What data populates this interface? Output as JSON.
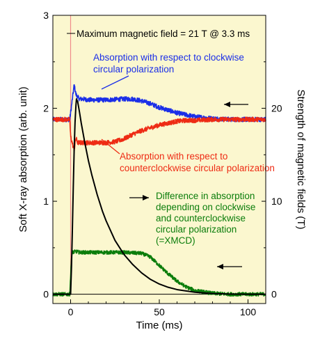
{
  "chart_data": {
    "type": "line",
    "xlabel": "Time (ms)",
    "ylabel": "Soft X-ray absorption (arb. unit)",
    "y2label": "Strength of magnetic fields (T)",
    "xlim": [
      -10,
      110
    ],
    "ylim": [
      -0.1,
      3.0
    ],
    "y2lim": [
      -1.0,
      30.0
    ],
    "xticks": [
      0,
      50,
      100
    ],
    "yticks": [
      0,
      1,
      2,
      3
    ],
    "y2ticks": [
      0,
      10,
      20
    ],
    "grid": false,
    "background": "#fbf7cf",
    "series": [
      {
        "id": "clockwise",
        "axis": "left",
        "color": "#1a2ee8",
        "noise": 0.025,
        "x": [
          -10,
          -0.5,
          0,
          1,
          2,
          3,
          4,
          5,
          7,
          10,
          20,
          30,
          35,
          40,
          45,
          50,
          55,
          60,
          65,
          70,
          80,
          90,
          100,
          110
        ],
        "y": [
          1.88,
          1.88,
          1.95,
          2.1,
          2.25,
          2.15,
          2.12,
          2.1,
          2.1,
          2.09,
          2.09,
          2.1,
          2.1,
          2.08,
          2.05,
          2.01,
          1.98,
          1.95,
          1.93,
          1.91,
          1.89,
          1.88,
          1.88,
          1.88
        ]
      },
      {
        "id": "counterclockwise",
        "axis": "left",
        "color": "#ee2b14",
        "noise": 0.025,
        "x": [
          -10,
          -0.5,
          0,
          1,
          2,
          3,
          4,
          5,
          7,
          10,
          20,
          25,
          30,
          35,
          40,
          45,
          50,
          55,
          60,
          65,
          70,
          80,
          90,
          100,
          110
        ],
        "y": [
          1.88,
          1.88,
          1.7,
          1.62,
          1.55,
          1.68,
          1.63,
          1.63,
          1.63,
          1.63,
          1.63,
          1.64,
          1.67,
          1.72,
          1.76,
          1.79,
          1.82,
          1.84,
          1.86,
          1.87,
          1.87,
          1.88,
          1.88,
          1.88,
          1.88
        ]
      },
      {
        "id": "xmcd",
        "axis": "left",
        "color": "#0b7d0b",
        "noise": 0.02,
        "x": [
          -10,
          -0.5,
          0,
          0.5,
          1,
          3,
          5,
          10,
          20,
          30,
          40,
          45,
          50,
          55,
          60,
          65,
          70,
          80,
          90,
          100,
          110
        ],
        "y": [
          0.0,
          0.0,
          0.2,
          0.4,
          0.45,
          0.46,
          0.45,
          0.45,
          0.45,
          0.45,
          0.44,
          0.4,
          0.31,
          0.22,
          0.14,
          0.08,
          0.04,
          0.01,
          0.0,
          0.0,
          0.0
        ]
      },
      {
        "id": "magnetic-field",
        "axis": "right",
        "color": "#000000",
        "noise": 0,
        "x": [
          -10,
          0,
          0.5,
          1,
          1.5,
          2,
          2.5,
          3,
          3.3,
          4,
          5,
          6,
          8,
          10,
          12,
          15,
          18,
          20,
          25,
          30,
          35,
          40,
          45,
          50,
          55,
          60,
          70,
          80,
          90,
          100,
          110
        ],
        "y": [
          0,
          0,
          3,
          7,
          11.5,
          15.5,
          18.5,
          20.3,
          21,
          20.7,
          19.6,
          18.4,
          16.3,
          14.4,
          12.8,
          10.7,
          8.9,
          7.9,
          5.8,
          4.3,
          3.2,
          2.3,
          1.6,
          1.1,
          0.75,
          0.5,
          0.22,
          0.08,
          0.02,
          0.0,
          0.0
        ]
      }
    ],
    "pulse_marker": {
      "x": 0,
      "color": "#f08a8a"
    },
    "annotations": {
      "max_field": "Maximum magnetic field = 21 T @ 3.3 ms",
      "clockwise": [
        "Absorption with respect to clockwise",
        "circular polarization"
      ],
      "counterclockwise": [
        "Absorption with respect to",
        "counterclockwise circular polarization"
      ],
      "xmcd": [
        "Difference in absorption",
        "depending on clockwise",
        "and counterclockwise",
        "circular polarization",
        "(=XMCD)"
      ]
    },
    "arrows": [
      {
        "series": "clockwise",
        "direction": "left",
        "color": "#000000"
      },
      {
        "series": "magnetic-field",
        "direction": "right",
        "color": "#000000"
      },
      {
        "series": "xmcd",
        "direction": "left",
        "color": "#000000"
      }
    ]
  }
}
